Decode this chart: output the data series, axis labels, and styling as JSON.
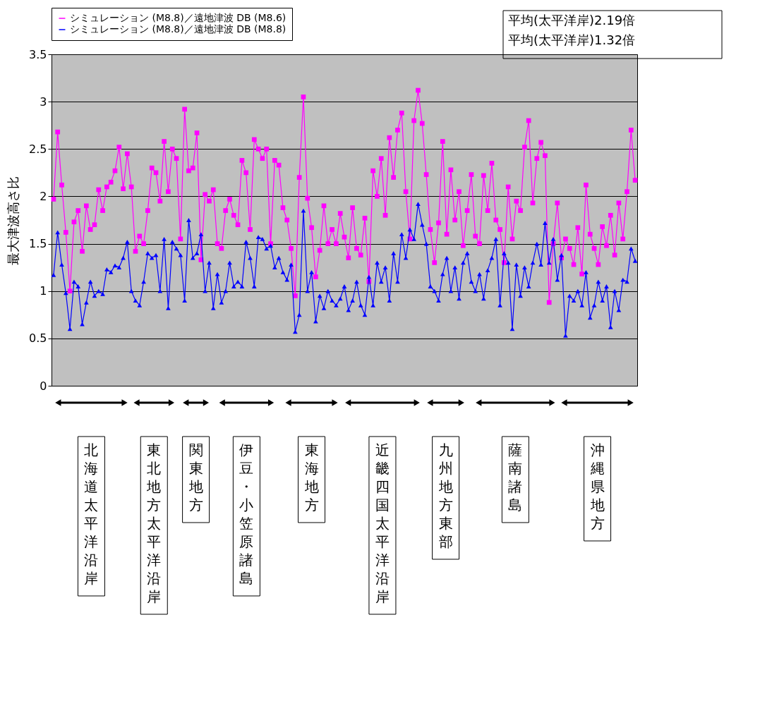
{
  "chart_data": {
    "type": "line",
    "ylabel": "最大津波高さ比",
    "categories": [
      null,
      null,
      null,
      null,
      null,
      null,
      null,
      null,
      null,
      null,
      null,
      null,
      null,
      null,
      null,
      null,
      null,
      null,
      null,
      null,
      null,
      null,
      null,
      null,
      null,
      null,
      null,
      null,
      null,
      null,
      null,
      null,
      null,
      null,
      null,
      null,
      null,
      null,
      null,
      null,
      null,
      null,
      null,
      null,
      null,
      null,
      null,
      null,
      null,
      null,
      null,
      null,
      null,
      null,
      null,
      null,
      null,
      null,
      null,
      null,
      null,
      null,
      null,
      null,
      null,
      null,
      null,
      null,
      null,
      null,
      null,
      null,
      null,
      null,
      null,
      null,
      null,
      null,
      null,
      null,
      null,
      null,
      null,
      null,
      null,
      null,
      null,
      null,
      null,
      null,
      null,
      null,
      null,
      null,
      null,
      null,
      null,
      null,
      null,
      null,
      null,
      null,
      null,
      null,
      null,
      null,
      null,
      null,
      null,
      null,
      null,
      null,
      null,
      null,
      null,
      null,
      null,
      null,
      null,
      null,
      null,
      null,
      null,
      null,
      null,
      null,
      null,
      null,
      null,
      null,
      null,
      null,
      null,
      null,
      null,
      null,
      null,
      null,
      null,
      null,
      null,
      null,
      null
    ],
    "series": [
      {
        "name": "シミュレーション (M8.8)／遠地津波 DB (M8.6)",
        "color": "#ff00ff",
        "marker": "square",
        "values": [
          1.97,
          2.68,
          2.12,
          1.62,
          1.0,
          1.73,
          1.85,
          1.42,
          1.9,
          1.65,
          1.7,
          2.07,
          1.85,
          2.1,
          2.15,
          2.27,
          2.52,
          2.08,
          2.45,
          2.1,
          1.42,
          1.58,
          1.5,
          1.85,
          2.3,
          2.25,
          1.95,
          2.58,
          2.05,
          2.5,
          2.4,
          1.55,
          2.92,
          2.27,
          2.3,
          2.67,
          1.33,
          2.02,
          1.95,
          2.07,
          1.5,
          1.45,
          1.85,
          1.97,
          1.8,
          1.7,
          2.38,
          2.25,
          1.65,
          2.6,
          2.5,
          2.4,
          2.5,
          1.5,
          2.38,
          2.33,
          1.88,
          1.75,
          1.45,
          0.95,
          2.2,
          3.05,
          1.98,
          1.67,
          1.15,
          1.43,
          1.9,
          1.5,
          1.65,
          1.5,
          1.82,
          1.57,
          1.35,
          1.88,
          1.45,
          1.38,
          1.77,
          1.1,
          2.27,
          2.0,
          2.4,
          1.8,
          2.62,
          2.2,
          2.7,
          2.88,
          2.05,
          1.55,
          2.8,
          3.12,
          2.77,
          2.23,
          1.65,
          1.3,
          1.72,
          2.58,
          1.6,
          2.28,
          1.75,
          2.05,
          1.48,
          1.85,
          2.23,
          1.58,
          1.5,
          2.22,
          1.85,
          2.35,
          1.75,
          1.65,
          1.3,
          2.1,
          1.55,
          1.95,
          1.85,
          2.52,
          2.8,
          1.93,
          2.4,
          2.57,
          2.43,
          0.88,
          1.5,
          1.93,
          1.35,
          1.55,
          1.45,
          1.28,
          1.67,
          1.18,
          2.12,
          1.6,
          1.45,
          1.28,
          1.68,
          1.48,
          1.8,
          1.38,
          1.93,
          1.55,
          2.05,
          2.7,
          2.17
        ]
      },
      {
        "name": "シミュレーション (M8.8)／遠地津波 DB (M8.8)",
        "color": "#0000ff",
        "marker": "triangle",
        "values": [
          1.17,
          1.62,
          1.28,
          0.98,
          0.6,
          1.1,
          1.05,
          0.65,
          0.88,
          1.1,
          0.95,
          1.0,
          0.97,
          1.23,
          1.2,
          1.27,
          1.25,
          1.35,
          1.52,
          1.0,
          0.9,
          0.85,
          1.1,
          1.4,
          1.35,
          1.38,
          1.0,
          1.55,
          0.82,
          1.52,
          1.45,
          1.38,
          0.9,
          1.75,
          1.35,
          1.4,
          1.6,
          1.0,
          1.3,
          0.82,
          1.18,
          0.88,
          1.0,
          1.3,
          1.05,
          1.1,
          1.05,
          1.52,
          1.35,
          1.05,
          1.57,
          1.55,
          1.45,
          1.48,
          1.25,
          1.35,
          1.2,
          1.12,
          1.28,
          0.57,
          0.75,
          1.85,
          1.0,
          1.2,
          0.68,
          0.95,
          0.82,
          1.0,
          0.9,
          0.85,
          0.92,
          1.05,
          0.8,
          0.9,
          1.1,
          0.85,
          0.75,
          1.15,
          0.85,
          1.3,
          1.1,
          1.25,
          0.9,
          1.4,
          1.1,
          1.6,
          1.35,
          1.65,
          1.55,
          1.92,
          1.7,
          1.5,
          1.05,
          1.0,
          0.9,
          1.18,
          1.35,
          1.0,
          1.25,
          0.92,
          1.3,
          1.4,
          1.1,
          1.0,
          1.18,
          0.92,
          1.22,
          1.35,
          1.55,
          0.85,
          1.4,
          1.3,
          0.6,
          1.28,
          0.95,
          1.25,
          1.05,
          1.3,
          1.5,
          1.28,
          1.72,
          1.3,
          1.55,
          1.12,
          1.38,
          0.53,
          0.95,
          0.9,
          1.0,
          0.85,
          1.2,
          0.72,
          0.85,
          1.1,
          0.9,
          1.05,
          0.62,
          1.0,
          0.8,
          1.12,
          1.1,
          1.45,
          1.32
        ]
      }
    ],
    "ylim": [
      0,
      3.5
    ],
    "yticks": [
      0,
      {
        "value": 0.5,
        "label": "0.5"
      },
      1,
      {
        "value": 1.5,
        "label": "1.5"
      },
      2,
      {
        "value": 2.5,
        "label": "2.5"
      },
      3,
      {
        "value": 3.5,
        "label": "3.5"
      }
    ],
    "grid": "y",
    "legend": "top left",
    "tick_labels": "y",
    "line_style": "solid",
    "annotations": [
      "平均(太平洋岸)2.19倍",
      "平均(太平洋岸)1.32倍",
      "北海道太平洋沿岸",
      "東北地方太平洋沿岸",
      "関東地方",
      "伊豆・小笠原諸島",
      "東海地方",
      "近畿四国太平洋沿岸",
      "九州地方東部",
      "薩南諸島",
      "沖縄県地方"
    ]
  }
}
